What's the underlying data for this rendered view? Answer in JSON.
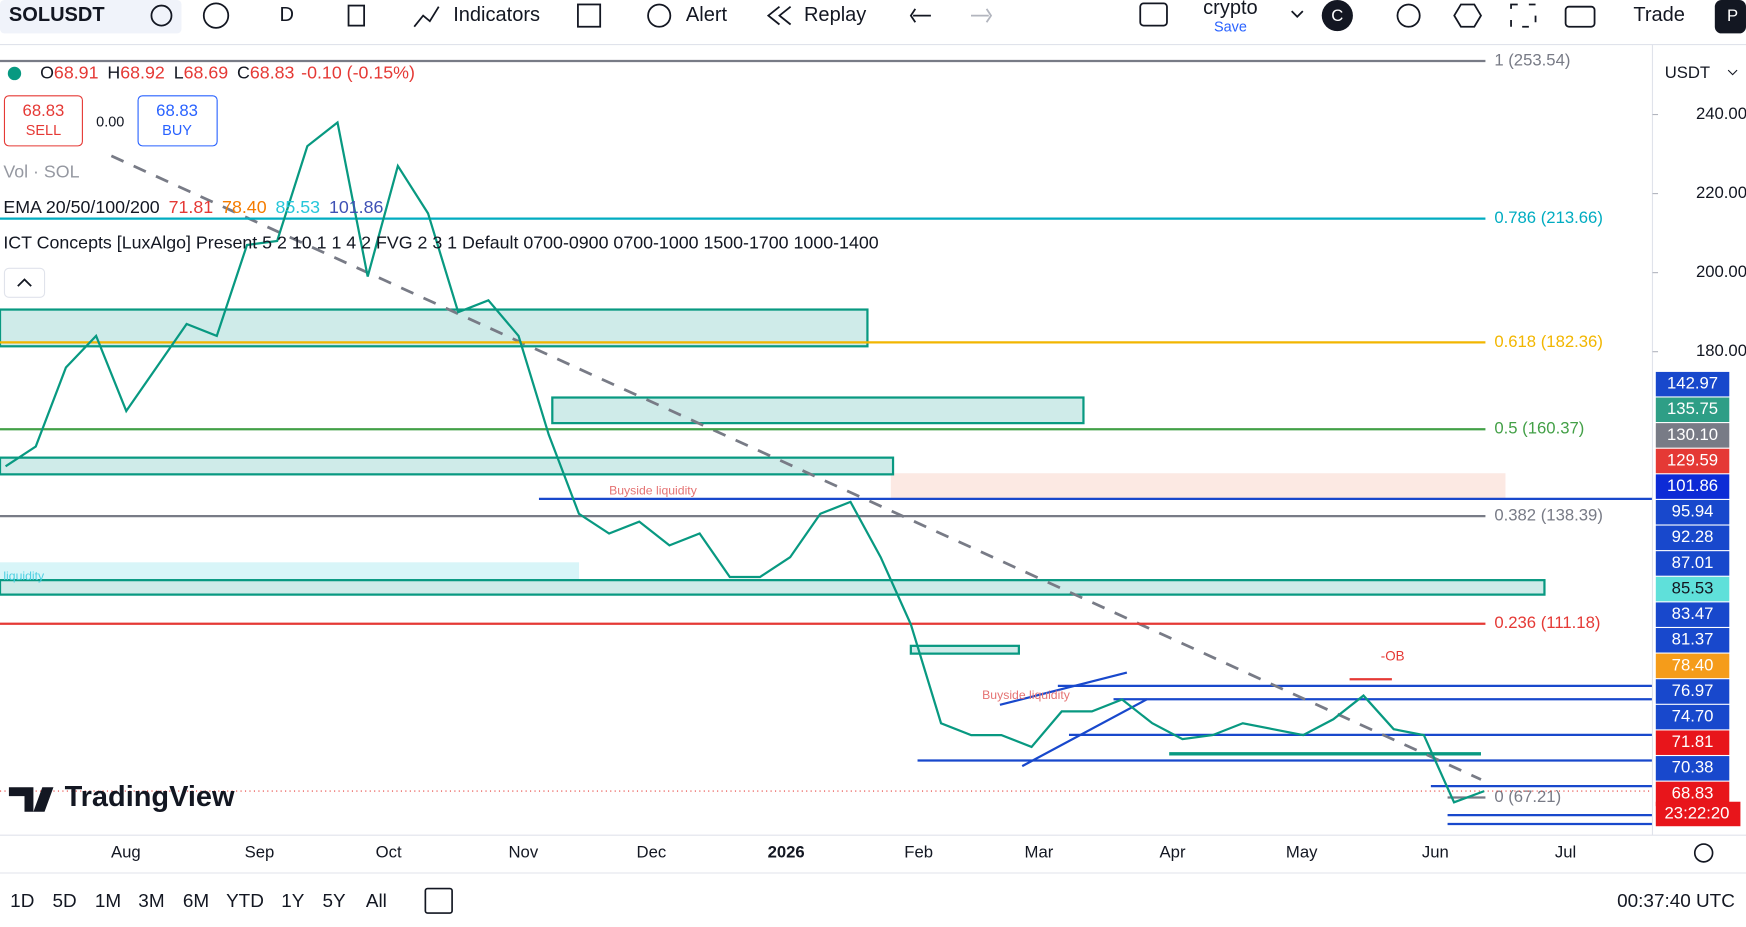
{
  "toolbar": {
    "symbol": "SOLUSDT",
    "interval": "D",
    "indicators": "Indicators",
    "alert": "Alert",
    "replay": "Replay",
    "layout": "crypto",
    "save": "Save",
    "avatar": "C",
    "trade": "Trade",
    "profile": "P"
  },
  "legend": {
    "ohlc": [
      {
        "key": "O",
        "value": 68.91
      },
      {
        "key": "H",
        "value": 68.92
      },
      {
        "key": "L",
        "value": 68.69
      },
      {
        "key": "C",
        "value": 68.83
      }
    ],
    "change": "-0.10 (-0.15%)",
    "sell_price": 68.83,
    "sell": "SELL",
    "spread": "0.00",
    "buy_price": 68.83,
    "buy": "BUY",
    "volume": "Vol · SOL",
    "ema_name": "EMA 20/50/100/200",
    "ema_values": [
      {
        "text": "71.81",
        "color": "#e53935"
      },
      {
        "text": "78.40",
        "color": "#f57c00"
      },
      {
        "text": "85.53",
        "color": "#26c6da"
      },
      {
        "text": "101.86",
        "color": "#3f51b5"
      }
    ],
    "ict": "ICT Concepts [LuxAlgo] Present 5 2 10 1 1 4 2 FVG 2 3 1 Default 0700-0900 0700-1000 1500-1700 1000-1400"
  },
  "chart_data": {
    "type": "line",
    "series": [
      {
        "color": "#089981",
        "values": [
          151,
          156,
          176,
          184,
          165,
          176,
          187,
          184,
          207,
          208,
          232,
          238,
          199,
          227,
          215,
          190,
          193,
          184,
          159,
          139,
          134,
          137,
          131,
          134,
          123,
          123,
          128,
          139,
          142,
          128,
          111,
          86,
          83,
          83,
          80,
          89,
          89,
          92,
          86,
          82,
          83,
          86,
          84.5,
          83,
          87,
          93,
          84.5,
          83,
          66,
          68.83
        ]
      }
    ],
    "ylim": [
      59.1,
      256.3
    ],
    "yticks": [
      {
        "value": 180,
        "label": "180.00"
      },
      {
        "value": 200,
        "label": "200.00"
      },
      {
        "value": 220,
        "label": "220.00"
      },
      {
        "value": 240,
        "label": "240.00"
      }
    ],
    "x_labels": [
      "Aug",
      "Sep",
      "Oct",
      "Nov",
      "Dec",
      "2026",
      "Feb",
      "Mar",
      "Apr",
      "May",
      "Jun",
      "Jul"
    ],
    "currency": "USDT",
    "fib_levels": [
      {
        "label": "1 (253.54)",
        "value": 253.54,
        "color": "#787b86"
      },
      {
        "label": "0.786 (213.66)",
        "value": 213.66,
        "color": "#00acc1"
      },
      {
        "label": "0.618 (182.36)",
        "value": 182.36,
        "color": "#f2b600"
      },
      {
        "label": "0.5 (160.37)",
        "value": 160.37,
        "color": "#43a047"
      },
      {
        "label": "0.382 (138.39)",
        "value": 138.39,
        "color": "#787b86"
      },
      {
        "label": "0.236 (111.18)",
        "value": 111.18,
        "color": "#e53935"
      },
      {
        "label": "0 (67.21)",
        "value": 67.21,
        "color": "#787b86"
      }
    ],
    "price_labels": [
      {
        "text": "142.97",
        "color": "#1848cc"
      },
      {
        "text": "135.75",
        "color": "#2e9e86"
      },
      {
        "text": "130.10",
        "color": "#787b86"
      },
      {
        "text": "129.59",
        "color": "#e53935"
      },
      {
        "text": "101.86",
        "color": "#0d2bd6"
      },
      {
        "text": "95.94",
        "color": "#1848cc"
      },
      {
        "text": "92.28",
        "color": "#1848cc"
      },
      {
        "text": "87.01",
        "color": "#1848cc"
      },
      {
        "text": "85.53",
        "color": "#5fe0da"
      },
      {
        "text": "83.47",
        "color": "#1848cc"
      },
      {
        "text": "81.37",
        "color": "#1848cc"
      },
      {
        "text": "78.40",
        "color": "#f59c1a"
      },
      {
        "text": "76.97",
        "color": "#1848cc"
      },
      {
        "text": "74.70",
        "color": "#1848cc"
      },
      {
        "text": "71.81",
        "color": "#e8151b"
      },
      {
        "text": "70.38",
        "color": "#1848cc"
      },
      {
        "text": "68.83",
        "color": "#e8151b"
      }
    ],
    "last_price": 68.83,
    "countdown": "23:22:20",
    "annotations": [
      "Buyside liquidity",
      "Buyside liquidity",
      "-OB",
      "liquidity"
    ],
    "watermark": "TradingView"
  },
  "bottom": {
    "ranges": [
      "1D",
      "5D",
      "1M",
      "3M",
      "6M",
      "YTD",
      "1Y",
      "5Y",
      "All"
    ],
    "clock": "00:37:40 UTC"
  }
}
